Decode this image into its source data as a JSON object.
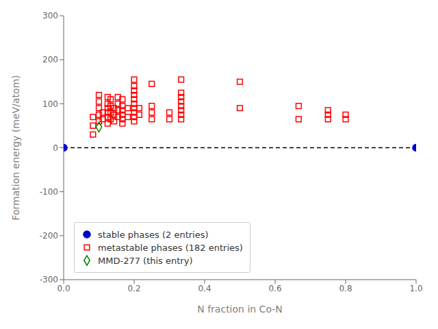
{
  "chart_data": {
    "type": "scatter",
    "xlabel": "N fraction in Co-N",
    "ylabel": "Formation energy (meV/atom)",
    "xlim": [
      0.0,
      1.0
    ],
    "ylim": [
      -300,
      300
    ],
    "xticks": [
      {
        "value": 0.0,
        "label": "0.0"
      },
      0.2,
      0.4,
      0.6,
      0.8,
      {
        "value": 1.0,
        "label": "1.0"
      }
    ],
    "yticks": [
      -300,
      -200,
      -100,
      0,
      100,
      200,
      300
    ],
    "legend": "lower left",
    "series": [
      {
        "type": "line",
        "color": "black",
        "line_style": "dashed",
        "x": [
          0.0,
          1.0
        ],
        "values": [
          0,
          0
        ]
      },
      {
        "name": "stable phases (2 entries)",
        "type": "scatter",
        "color": "#0000cc",
        "marker": "filled_circle",
        "x": [
          0.0,
          1.0
        ],
        "values": [
          0,
          0
        ]
      },
      {
        "name": "metastable phases (182 entries)",
        "type": "scatter",
        "color": "red",
        "marker": "open_square",
        "x": [
          0.0833,
          0.0833,
          0.0833,
          0.1,
          0.1,
          0.1,
          0.1,
          0.1,
          0.1111,
          0.1111,
          0.125,
          0.125,
          0.125,
          0.125,
          0.125,
          0.125,
          0.1333,
          0.1333,
          0.1333,
          0.1333,
          0.1429,
          0.1429,
          0.1429,
          0.1538,
          0.1538,
          0.1538,
          0.1538,
          0.1667,
          0.1667,
          0.1667,
          0.1667,
          0.1667,
          0.1667,
          0.1818,
          0.1818,
          0.2,
          0.2,
          0.2,
          0.2,
          0.2,
          0.2,
          0.2,
          0.2,
          0.2,
          0.2,
          0.2143,
          0.2143,
          0.25,
          0.25,
          0.25,
          0.25,
          0.3,
          0.3,
          0.3333,
          0.3333,
          0.3333,
          0.3333,
          0.3333,
          0.3333,
          0.3333,
          0.3333,
          0.5,
          0.5,
          0.6667,
          0.6667,
          0.75,
          0.75,
          0.75,
          0.8,
          0.8
        ],
        "values": [
          30,
          50,
          70,
          60,
          75,
          90,
          105,
          120,
          65,
          80,
          55,
          70,
          80,
          90,
          100,
          115,
          65,
          80,
          95,
          110,
          60,
          75,
          90,
          70,
          85,
          100,
          115,
          55,
          65,
          75,
          85,
          95,
          110,
          70,
          90,
          60,
          70,
          80,
          90,
          100,
          110,
          120,
          130,
          140,
          155,
          75,
          90,
          65,
          80,
          95,
          145,
          65,
          80,
          65,
          75,
          85,
          95,
          105,
          115,
          125,
          155,
          90,
          150,
          65,
          95,
          65,
          75,
          85,
          65,
          75
        ]
      },
      {
        "name": "MMD-277 (this entry)",
        "type": "scatter",
        "color": "green",
        "marker": "open_diamond",
        "x": [
          0.1
        ],
        "values": [
          47
        ]
      }
    ]
  }
}
